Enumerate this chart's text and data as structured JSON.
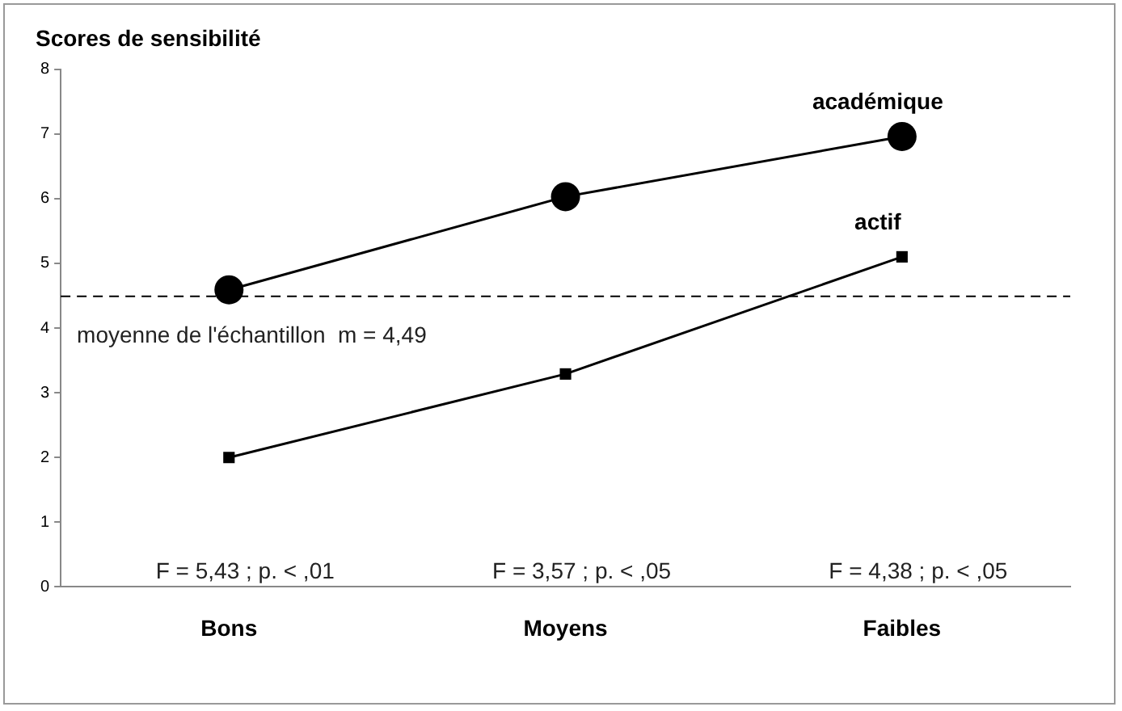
{
  "chart_data": {
    "type": "line",
    "title": "Scores de sensibilité",
    "categories": [
      "Bons",
      "Moyens",
      "Faibles"
    ],
    "series": [
      {
        "name": "académique",
        "color": "#000000",
        "marker": "circle",
        "values": [
          4.59,
          6.03,
          6.96
        ]
      },
      {
        "name": "actif",
        "color": "#000000",
        "marker": "square",
        "values": [
          2.0,
          3.29,
          5.1
        ]
      }
    ],
    "ylim": [
      0,
      8
    ],
    "yticks": [
      0,
      1,
      2,
      3,
      4,
      5,
      6,
      7,
      8
    ],
    "grid": false,
    "legend": false,
    "line_style": "solid",
    "ref_lines": [
      {
        "axis": "y",
        "value": 4.49,
        "label": "moyenne de l'échantillon  m = 4,49",
        "color": "#000000",
        "line_style": "dashed"
      }
    ],
    "annotations": [
      "F = 5,43 ; p. < ,01",
      "F = 3,57 ; p. < ,05",
      "F = 4,38 ; p. < ,05"
    ]
  }
}
